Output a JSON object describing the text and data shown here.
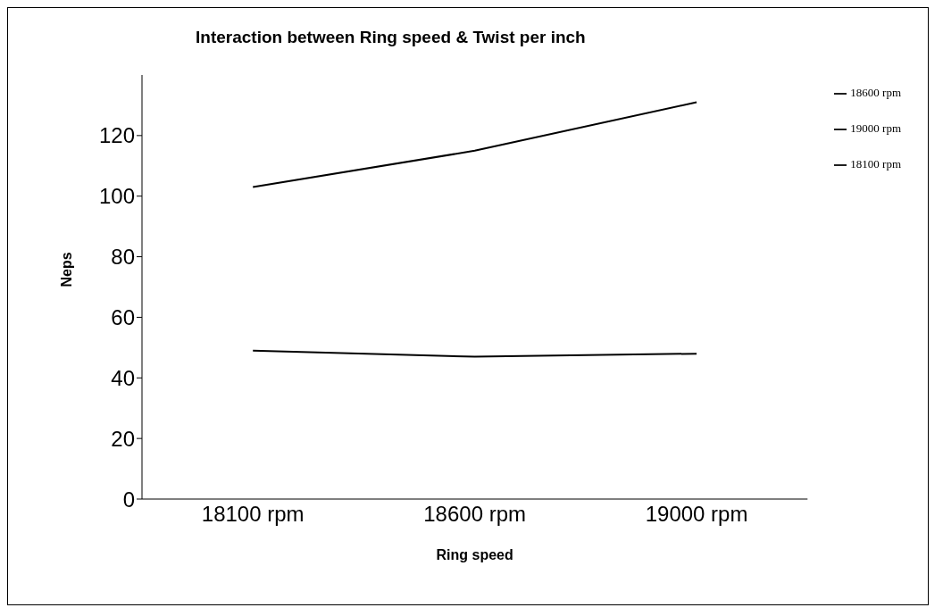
{
  "chart_data": {
    "type": "line",
    "title": "Interaction between Ring speed & Twist per inch",
    "xlabel": "Ring speed",
    "ylabel": "Neps",
    "categories": [
      "18100 rpm",
      "18600 rpm",
      "19000 rpm"
    ],
    "series": [
      {
        "name": "18600 rpm",
        "color": "#000000",
        "values": [
          103,
          115,
          131
        ]
      },
      {
        "name": "19000 rpm",
        "color": "#000000",
        "values": [
          null,
          null,
          null
        ]
      },
      {
        "name": "18100 rpm",
        "color": "#000000",
        "values": [
          49,
          47,
          48
        ]
      }
    ],
    "ylim": [
      0,
      140
    ],
    "yticks": [
      0,
      20,
      40,
      60,
      80,
      100,
      120
    ],
    "grid": false,
    "legend": "right",
    "marker": "none",
    "line_style": "solid"
  }
}
